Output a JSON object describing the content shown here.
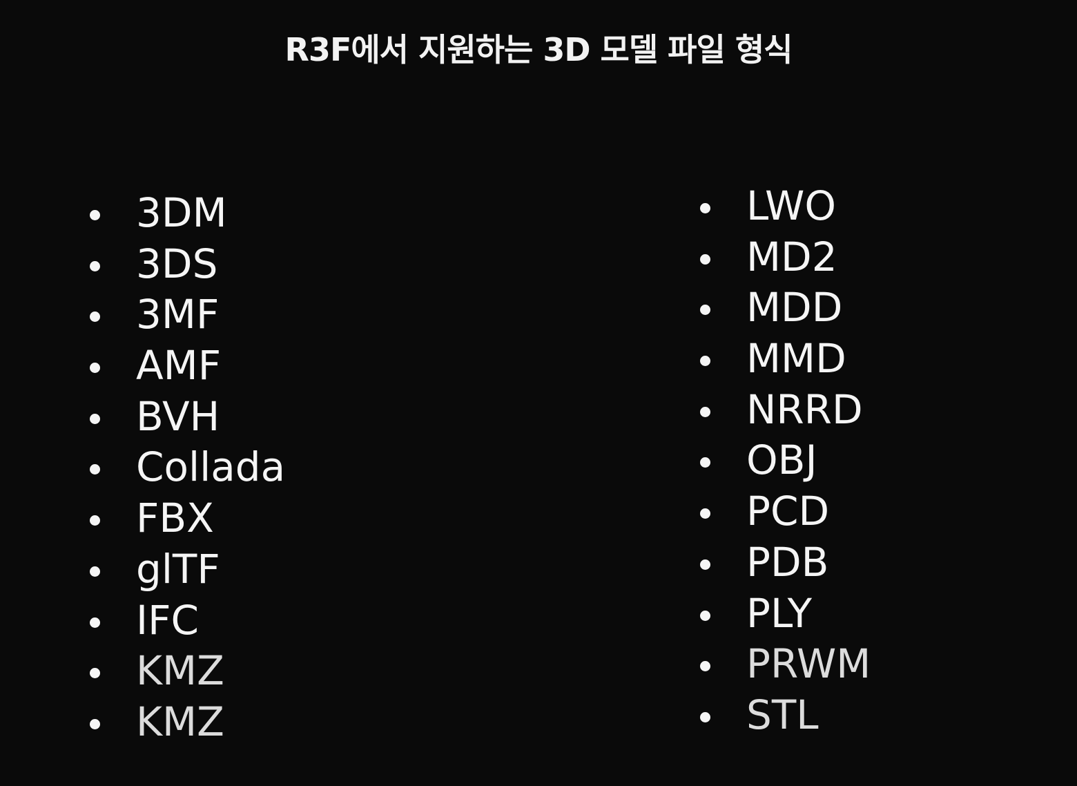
{
  "title": "R3F에서 지원하는 3D 모델 파일 형식",
  "left_list": [
    "3DM",
    "3DS",
    "3MF",
    "AMF",
    "BVH",
    "Collada",
    "FBX",
    "glTF",
    "IFC",
    "KMZ",
    "KMZ"
  ],
  "right_list": [
    "LWO",
    "MD2",
    "MDD",
    "MMD",
    "NRRD",
    "OBJ",
    "PCD",
    "PDB",
    "PLY",
    "PRWM",
    "STL"
  ],
  "colors": {
    "background": "#0a0a0a",
    "text": "#f5f5f5"
  }
}
